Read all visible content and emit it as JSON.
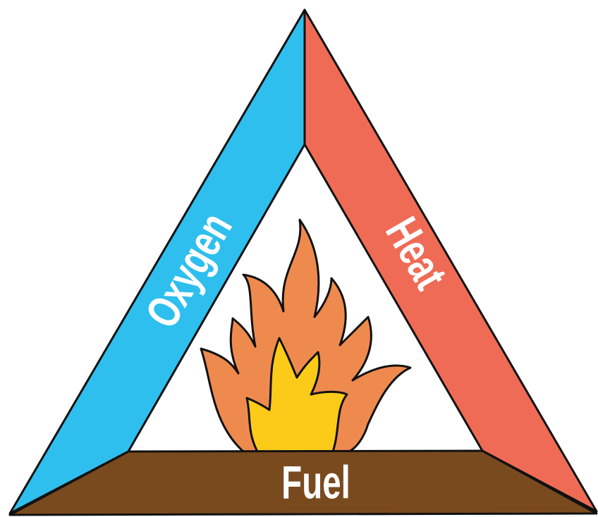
{
  "labels": {
    "oxygen": "Oxygen",
    "heat": "Heat",
    "fuel": "Fuel"
  }
}
